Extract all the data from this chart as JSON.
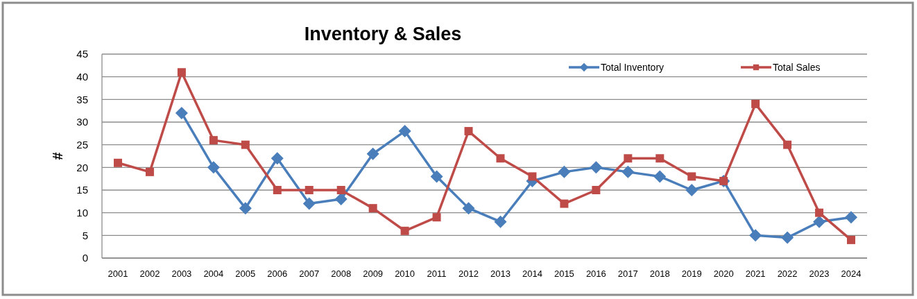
{
  "chart_data": {
    "type": "line",
    "title": "Inventory & Sales",
    "ylabel": "#",
    "categories": [
      "2001",
      "2002",
      "2003",
      "2004",
      "2005",
      "2006",
      "2007",
      "2008",
      "2009",
      "2010",
      "2011",
      "2012",
      "2013",
      "2014",
      "2015",
      "2016",
      "2017",
      "2018",
      "2019",
      "2020",
      "2021",
      "2022",
      "2023",
      "2024"
    ],
    "series": [
      {
        "name": "Total Inventory",
        "color": "#4a7ebb",
        "marker": "diamond",
        "values": [
          null,
          null,
          32,
          20,
          11,
          22,
          12,
          13,
          23,
          28,
          18,
          11,
          8,
          17,
          19,
          20,
          19,
          18,
          15,
          17,
          5,
          4.5,
          8,
          9
        ]
      },
      {
        "name": "Total Sales",
        "color": "#be4b48",
        "marker": "square",
        "values": [
          21,
          19,
          41,
          26,
          25,
          15,
          15,
          15,
          11,
          6,
          9,
          28,
          22,
          18,
          12,
          15,
          22,
          22,
          18,
          17,
          34,
          25,
          10,
          4
        ]
      }
    ],
    "ylim": [
      0,
      45
    ],
    "yticks": [
      0,
      5,
      10,
      15,
      20,
      25,
      30,
      35,
      40,
      45
    ],
    "grid": "y",
    "legend": "top right",
    "line_style": "solid"
  }
}
